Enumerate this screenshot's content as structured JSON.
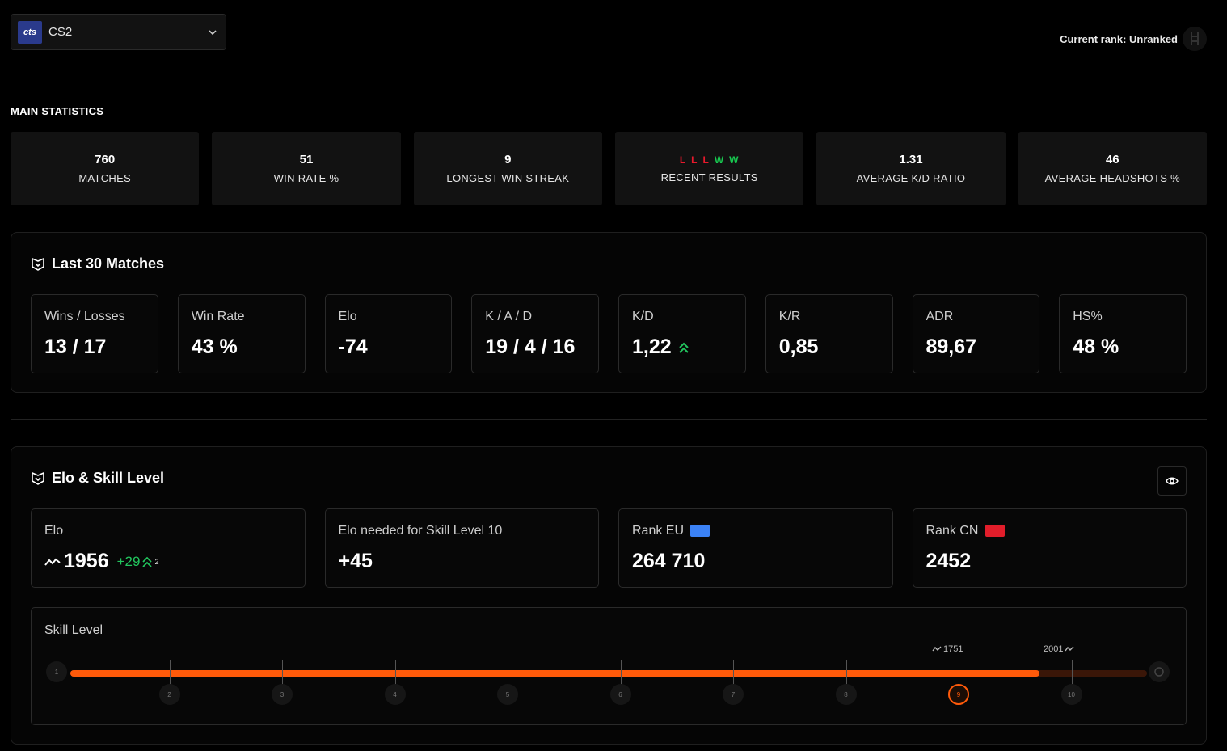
{
  "game_select": {
    "logo_text": "cts",
    "name": "CS2"
  },
  "current_rank": {
    "label": "Current rank: Unranked"
  },
  "main_statistics": {
    "title": "MAIN STATISTICS",
    "items": [
      {
        "value": "760",
        "label": "MATCHES"
      },
      {
        "value": "51",
        "label": "WIN RATE %"
      },
      {
        "value": "9",
        "label": "LONGEST WIN STREAK"
      },
      {
        "value": "",
        "label": "RECENT RESULTS",
        "results": [
          "L",
          "L",
          "L",
          "W",
          "W"
        ]
      },
      {
        "value": "1.31",
        "label": "AVERAGE K/D RATIO"
      },
      {
        "value": "46",
        "label": "AVERAGE HEADSHOTS %"
      }
    ]
  },
  "last30": {
    "title": "Last 30 Matches",
    "cards": [
      {
        "label": "Wins / Losses",
        "value": "13 / 17"
      },
      {
        "label": "Win Rate",
        "value": "43 %"
      },
      {
        "label": "Elo",
        "value": "-74"
      },
      {
        "label": "K / A / D",
        "value": "19 / 4 / 16"
      },
      {
        "label": "K/D",
        "value": "1,22"
      },
      {
        "label": "K/R",
        "value": "0,85"
      },
      {
        "label": "ADR",
        "value": "89,67"
      },
      {
        "label": "HS%",
        "value": "48 %"
      }
    ]
  },
  "elo_skill": {
    "title": "Elo & Skill Level",
    "elo": {
      "label": "Elo",
      "value": "1956",
      "delta": "+29",
      "delta_sup": "2"
    },
    "needed": {
      "label": "Elo needed for Skill Level 10",
      "value": "+45"
    },
    "rank_eu": {
      "label": "Rank EU",
      "value": "264 710"
    },
    "rank_cn": {
      "label": "Rank CN",
      "value": "2452"
    },
    "skill": {
      "label": "Skill Level",
      "levels": [
        "1",
        "2",
        "3",
        "4",
        "5",
        "6",
        "7",
        "8",
        "9",
        "10"
      ],
      "current_level": 9,
      "progress_fraction": 0.9,
      "marker_low": "1751",
      "marker_high": "2001"
    }
  },
  "colors": {
    "accent": "#ff5a0a",
    "win": "#18c850",
    "loss": "#e8192c",
    "positive": "#22c55e"
  }
}
